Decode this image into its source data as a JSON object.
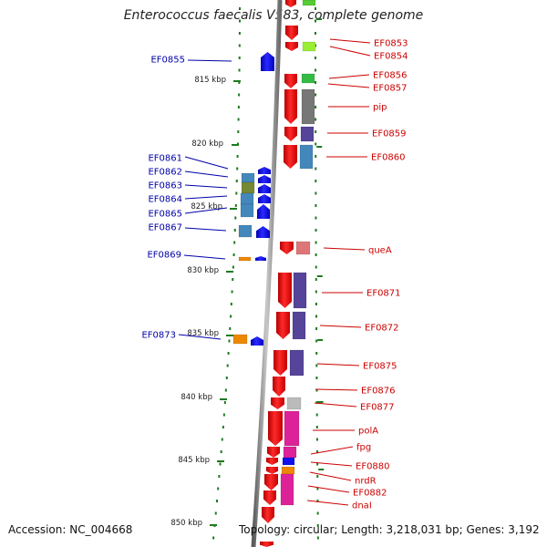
{
  "title": "Enterococcus faecalis V583, complete genome",
  "accession": "Accession: NC_004668",
  "topology": "Topology: circular; Length: 3,218,031 bp; Genes: 3,192",
  "colors": {
    "label_right": "#cc0000",
    "label_left": "#0000aa",
    "backbone": "#888888",
    "ring_dots": "#1e7a1e",
    "feature_red": "#ee1111",
    "feature_blue": "#1010ee"
  },
  "scale": [
    {
      "label": "815 kbp"
    },
    {
      "label": "820 kbp"
    },
    {
      "label": "825 kbp"
    },
    {
      "label": "830 kbp"
    },
    {
      "label": "835 kbp"
    },
    {
      "label": "840 kbp"
    },
    {
      "label": "845 kbp"
    },
    {
      "label": "850 kbp"
    }
  ],
  "right_labels": [
    "EF0853",
    "EF0854",
    "EF0856",
    "EF0857",
    "pip",
    "EF0859",
    "EF0860",
    "queA",
    "EF0871",
    "EF0872",
    "EF0875",
    "EF0876",
    "EF0877",
    "polA",
    "fpg",
    "EF0880",
    "nrdR",
    "EF0882",
    "dnaI"
  ],
  "left_labels": [
    "EF0855",
    "EF0861",
    "EF0862",
    "EF0863",
    "EF0864",
    "EF0865",
    "EF0867",
    "EF0869",
    "EF0873"
  ]
}
